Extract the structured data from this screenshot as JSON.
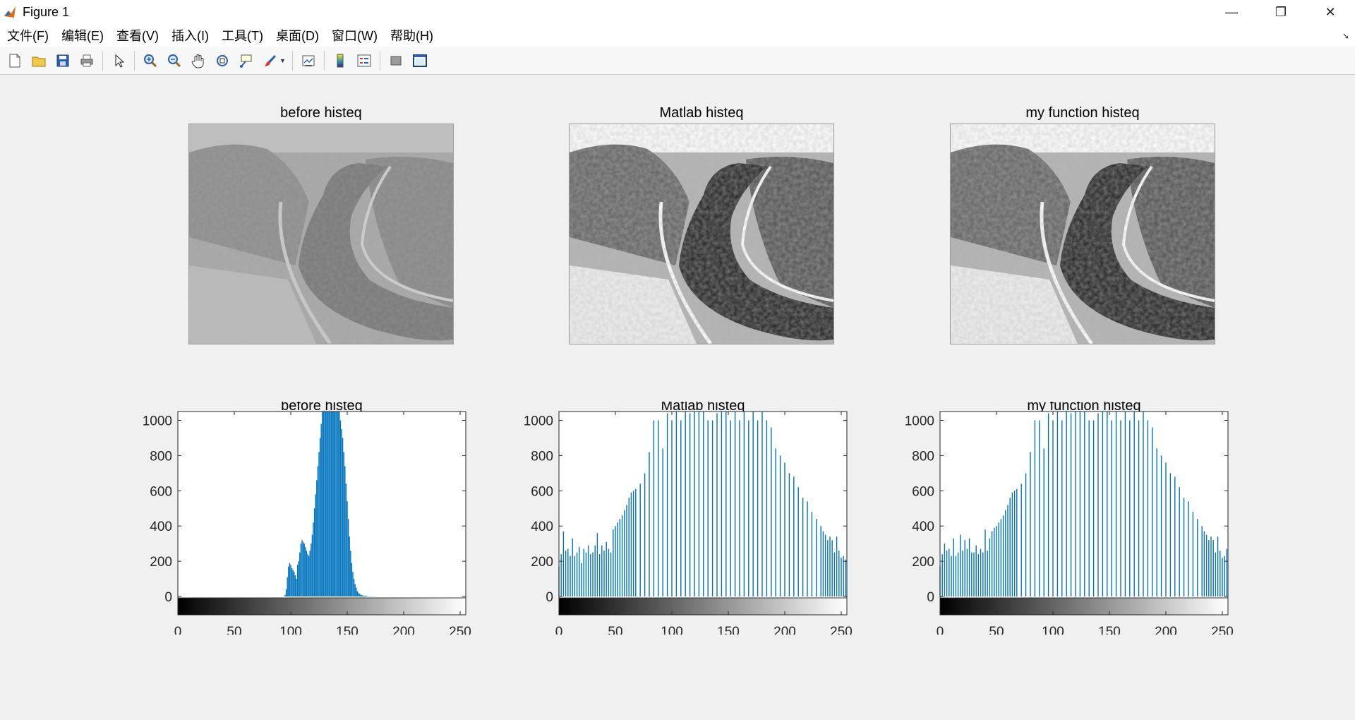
{
  "window": {
    "title": "Figure 1",
    "controls": {
      "minimize": "—",
      "restore": "❐",
      "close": "✕"
    }
  },
  "menu": {
    "items": [
      "文件(F)",
      "编辑(E)",
      "查看(V)",
      "插入(I)",
      "工具(T)",
      "桌面(D)",
      "窗口(W)",
      "帮助(H)"
    ]
  },
  "toolbar": {
    "buttons": [
      "new-figure-icon",
      "open-icon",
      "save-icon",
      "print-icon",
      "pointer-icon",
      "zoom-in-icon",
      "zoom-out-icon",
      "pan-icon",
      "rotate-3d-icon",
      "data-cursor-icon",
      "brush-icon",
      "link-plot-icon",
      "colorbar-icon",
      "legend-icon",
      "hide-plot-tools-icon",
      "show-plot-tools-icon"
    ]
  },
  "colors": {
    "bar": "#0072BD",
    "axes_bg": "#ffffff",
    "figure_bg": "#f0f0f0"
  },
  "panels": {
    "images": [
      {
        "title": "before histeq",
        "style": "low-contrast"
      },
      {
        "title": "Matlab histeq",
        "style": "high-contrast"
      },
      {
        "title": "my function histeq",
        "style": "high-contrast"
      }
    ]
  },
  "chart_data": [
    {
      "type": "bar",
      "title": "before histeq",
      "xlim": [
        0,
        255
      ],
      "ylim": [
        -100,
        1050
      ],
      "xticks": [
        0,
        50,
        100,
        150,
        200,
        250
      ],
      "yticks": [
        0,
        200,
        400,
        600,
        800,
        1000
      ],
      "colorbar": "gray",
      "x_start": 95,
      "values": [
        10,
        40,
        110,
        170,
        190,
        180,
        160,
        150,
        140,
        120,
        100,
        180,
        200,
        250,
        300,
        320,
        310,
        300,
        280,
        260,
        240,
        230,
        260,
        300,
        350,
        420,
        500,
        580,
        660,
        740,
        820,
        900,
        980,
        1050,
        1050,
        1050,
        1050,
        1050,
        1050,
        1050,
        1050,
        1050,
        1050,
        1050,
        1050,
        1050,
        1050,
        1050,
        1050,
        1000,
        950,
        900,
        820,
        740,
        640,
        540,
        440,
        340,
        260,
        190,
        140,
        100,
        70,
        50,
        30,
        20,
        15,
        10,
        8,
        6,
        5,
        4,
        3,
        2,
        2,
        1,
        1,
        1,
        1,
        1,
        1
      ]
    },
    {
      "type": "bar",
      "title": "Matlab histeq",
      "xlim": [
        0,
        255
      ],
      "ylim": [
        -100,
        1050
      ],
      "xticks": [
        0,
        50,
        100,
        150,
        200,
        250
      ],
      "yticks": [
        0,
        200,
        400,
        600,
        800,
        1000
      ],
      "colorbar": "gray",
      "bars": [
        [
          0,
          170
        ],
        [
          2,
          240
        ],
        [
          4,
          370
        ],
        [
          6,
          260
        ],
        [
          8,
          270
        ],
        [
          10,
          230
        ],
        [
          12,
          330
        ],
        [
          14,
          230
        ],
        [
          16,
          250
        ],
        [
          18,
          280
        ],
        [
          20,
          190
        ],
        [
          22,
          270
        ],
        [
          24,
          250
        ],
        [
          26,
          290
        ],
        [
          28,
          240
        ],
        [
          30,
          250
        ],
        [
          32,
          290
        ],
        [
          34,
          360
        ],
        [
          36,
          240
        ],
        [
          38,
          290
        ],
        [
          40,
          260
        ],
        [
          42,
          310
        ],
        [
          44,
          270
        ],
        [
          46,
          250
        ],
        [
          48,
          380
        ],
        [
          50,
          400
        ],
        [
          52,
          420
        ],
        [
          54,
          440
        ],
        [
          56,
          460
        ],
        [
          58,
          490
        ],
        [
          60,
          520
        ],
        [
          62,
          560
        ],
        [
          64,
          590
        ],
        [
          66,
          600
        ],
        [
          68,
          610
        ],
        [
          72,
          640
        ],
        [
          76,
          700
        ],
        [
          80,
          820
        ],
        [
          84,
          1000
        ],
        [
          88,
          1000
        ],
        [
          92,
          840
        ],
        [
          96,
          1040
        ],
        [
          100,
          1000
        ],
        [
          104,
          1050
        ],
        [
          108,
          1000
        ],
        [
          112,
          1050
        ],
        [
          116,
          1040
        ],
        [
          120,
          1050
        ],
        [
          124,
          1050
        ],
        [
          128,
          1050
        ],
        [
          132,
          1000
        ],
        [
          136,
          1000
        ],
        [
          140,
          1040
        ],
        [
          144,
          1050
        ],
        [
          148,
          1050
        ],
        [
          152,
          1000
        ],
        [
          156,
          1050
        ],
        [
          160,
          1000
        ],
        [
          164,
          1050
        ],
        [
          168,
          1000
        ],
        [
          172,
          1050
        ],
        [
          176,
          1000
        ],
        [
          180,
          1050
        ],
        [
          184,
          1000
        ],
        [
          188,
          960
        ],
        [
          192,
          840
        ],
        [
          196,
          800
        ],
        [
          200,
          760
        ],
        [
          204,
          700
        ],
        [
          208,
          680
        ],
        [
          212,
          620
        ],
        [
          216,
          560
        ],
        [
          220,
          540
        ],
        [
          224,
          480
        ],
        [
          228,
          440
        ],
        [
          232,
          400
        ],
        [
          234,
          370
        ],
        [
          236,
          350
        ],
        [
          238,
          320
        ],
        [
          240,
          340
        ],
        [
          242,
          320
        ],
        [
          244,
          250
        ],
        [
          246,
          340
        ],
        [
          248,
          260
        ],
        [
          250,
          220
        ],
        [
          252,
          230
        ],
        [
          254,
          210
        ]
      ]
    },
    {
      "type": "bar",
      "title": "my function histeq",
      "xlim": [
        0,
        255
      ],
      "ylim": [
        -100,
        1050
      ],
      "xticks": [
        0,
        50,
        100,
        150,
        200,
        250
      ],
      "yticks": [
        0,
        200,
        400,
        600,
        800,
        1000
      ],
      "colorbar": "gray",
      "bars": [
        [
          0,
          170
        ],
        [
          2,
          240
        ],
        [
          4,
          300
        ],
        [
          6,
          260
        ],
        [
          8,
          270
        ],
        [
          10,
          230
        ],
        [
          12,
          330
        ],
        [
          14,
          230
        ],
        [
          16,
          250
        ],
        [
          18,
          350
        ],
        [
          20,
          260
        ],
        [
          22,
          320
        ],
        [
          24,
          270
        ],
        [
          26,
          330
        ],
        [
          28,
          250
        ],
        [
          30,
          250
        ],
        [
          32,
          290
        ],
        [
          34,
          240
        ],
        [
          36,
          270
        ],
        [
          38,
          250
        ],
        [
          40,
          380
        ],
        [
          42,
          260
        ],
        [
          44,
          330
        ],
        [
          46,
          370
        ],
        [
          48,
          390
        ],
        [
          50,
          400
        ],
        [
          52,
          420
        ],
        [
          54,
          440
        ],
        [
          56,
          460
        ],
        [
          58,
          490
        ],
        [
          60,
          520
        ],
        [
          62,
          560
        ],
        [
          64,
          590
        ],
        [
          66,
          600
        ],
        [
          68,
          610
        ],
        [
          72,
          640
        ],
        [
          76,
          700
        ],
        [
          80,
          820
        ],
        [
          84,
          1000
        ],
        [
          88,
          1000
        ],
        [
          92,
          840
        ],
        [
          96,
          1040
        ],
        [
          100,
          1000
        ],
        [
          104,
          1050
        ],
        [
          108,
          1000
        ],
        [
          112,
          1050
        ],
        [
          116,
          1040
        ],
        [
          120,
          1050
        ],
        [
          124,
          1050
        ],
        [
          128,
          1050
        ],
        [
          132,
          1000
        ],
        [
          136,
          1000
        ],
        [
          140,
          1040
        ],
        [
          144,
          1050
        ],
        [
          148,
          1050
        ],
        [
          152,
          1000
        ],
        [
          156,
          1050
        ],
        [
          160,
          1000
        ],
        [
          164,
          1050
        ],
        [
          168,
          1000
        ],
        [
          172,
          1050
        ],
        [
          176,
          1000
        ],
        [
          180,
          1050
        ],
        [
          184,
          1000
        ],
        [
          188,
          960
        ],
        [
          192,
          840
        ],
        [
          196,
          800
        ],
        [
          200,
          760
        ],
        [
          204,
          700
        ],
        [
          208,
          680
        ],
        [
          212,
          620
        ],
        [
          216,
          560
        ],
        [
          220,
          540
        ],
        [
          224,
          480
        ],
        [
          228,
          440
        ],
        [
          232,
          400
        ],
        [
          234,
          370
        ],
        [
          236,
          350
        ],
        [
          238,
          320
        ],
        [
          240,
          340
        ],
        [
          242,
          320
        ],
        [
          244,
          250
        ],
        [
          246,
          340
        ],
        [
          248,
          260
        ],
        [
          250,
          220
        ],
        [
          252,
          230
        ],
        [
          254,
          270
        ]
      ]
    }
  ]
}
